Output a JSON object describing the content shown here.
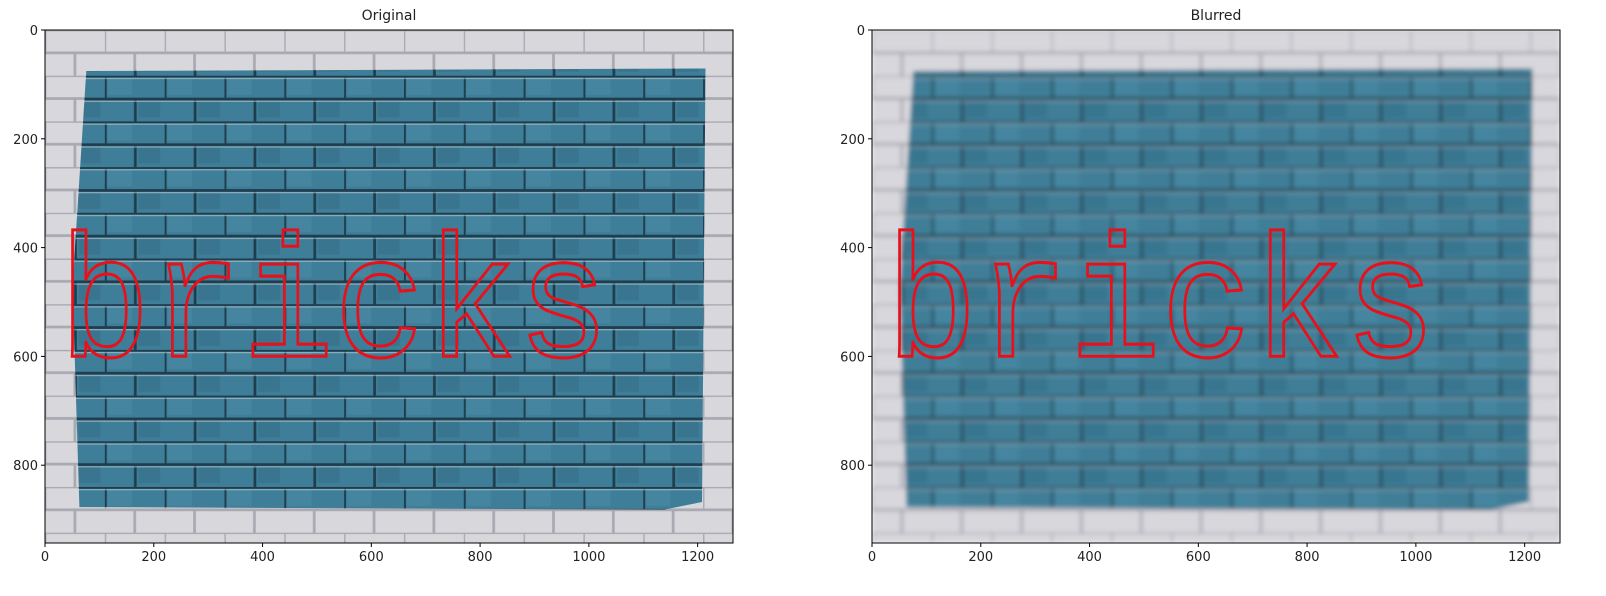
{
  "chart_data": [
    {
      "type": "image",
      "title": "Original",
      "image_text": "bricks",
      "blur": false,
      "xlim": [
        0,
        1265
      ],
      "ylim": [
        943,
        0
      ],
      "xticks": [
        0,
        200,
        400,
        600,
        800,
        1000,
        1200
      ],
      "yticks": [
        0,
        200,
        400,
        600,
        800
      ]
    },
    {
      "type": "image",
      "title": "Blurred",
      "image_text": "bricks",
      "blur": true,
      "xlim": [
        0,
        1265
      ],
      "ylim": [
        943,
        0
      ],
      "xticks": [
        0,
        200,
        400,
        600,
        800,
        1000,
        1200
      ],
      "yticks": [
        0,
        200,
        400,
        600,
        800
      ]
    }
  ]
}
